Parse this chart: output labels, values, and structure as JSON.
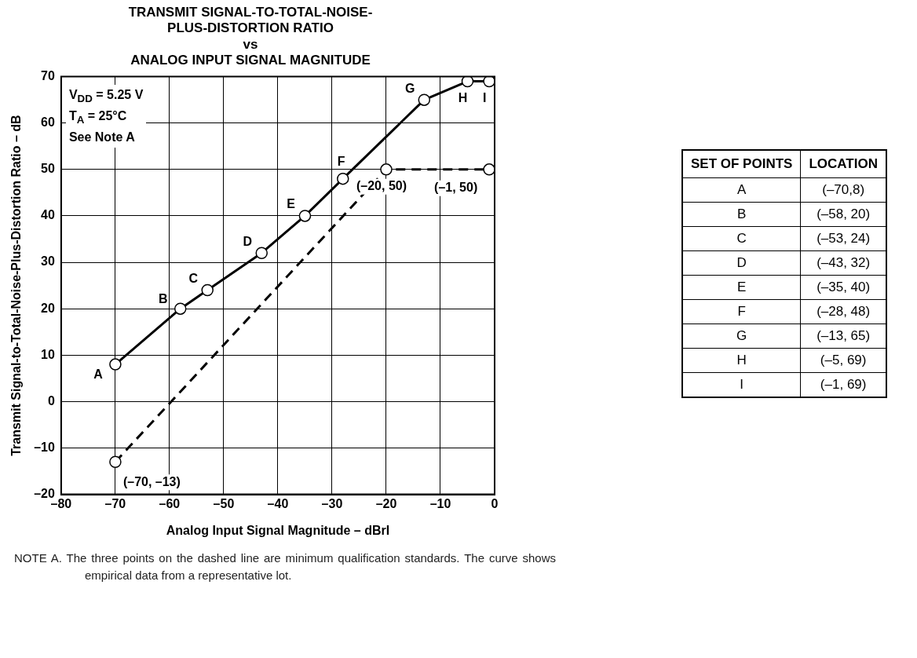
{
  "chart_data": {
    "type": "line",
    "title": "TRANSMIT SIGNAL-TO-TOTAL-NOISE-\nPLUS-DISTORTION RATIO\nvs\nANALOG INPUT SIGNAL MAGNITUDE",
    "xlabel": "Analog Input Signal Magnitude – dBrI",
    "ylabel": "Transmit Signal-to-Total-Noise-Plus-Distortion Ratio – dB",
    "xlim": [
      -80,
      0
    ],
    "xticks": [
      {
        "value": -80,
        "label": "–80"
      },
      {
        "value": -70,
        "label": "–70"
      },
      {
        "value": -60,
        "label": "–60"
      },
      {
        "value": -50,
        "label": "–50"
      },
      {
        "value": -40,
        "label": "–40"
      },
      {
        "value": -30,
        "label": "–30"
      },
      {
        "value": -20,
        "label": "–20"
      },
      {
        "value": -10,
        "label": "–10"
      },
      0
    ],
    "ylim": [
      -20,
      70
    ],
    "yticks": [
      {
        "value": -20,
        "label": "–20"
      },
      {
        "value": -10,
        "label": "–10"
      },
      0,
      10,
      20,
      30,
      40,
      50,
      60,
      70
    ],
    "grid": true,
    "marker": "circle",
    "legend": false,
    "series": [
      {
        "color": "#000000",
        "line_style": "solid",
        "x": [
          -70,
          -58,
          -53,
          -43,
          -35,
          -28,
          -13,
          -5,
          -1
        ],
        "values": [
          8,
          20,
          24,
          32,
          40,
          48,
          65,
          69,
          69
        ]
      },
      {
        "color": "#000000",
        "line_style": "dashed",
        "x": [
          -70,
          -20,
          -1
        ],
        "values": [
          -13,
          50,
          50
        ],
        "value_labels": [
          "(–70, –13)",
          "(–20, 50)",
          "(–1, 50)"
        ]
      }
    ],
    "annotations": [
      {
        "text": "A",
        "x": -70,
        "y": 8
      },
      {
        "text": "B",
        "x": -58,
        "y": 20
      },
      {
        "text": "C",
        "x": -53,
        "y": 24
      },
      {
        "text": "D",
        "x": -43,
        "y": 32
      },
      {
        "text": "E",
        "x": -35,
        "y": 40
      },
      {
        "text": "F",
        "x": -28,
        "y": 48
      },
      {
        "text": "G",
        "x": -13,
        "y": 65
      },
      {
        "text": "H",
        "x": -5,
        "y": 69
      },
      {
        "text": "I",
        "x": -1,
        "y": 69
      },
      "V$_{DD}$ = 5.25 V",
      "T$_{A}$ = 25°C",
      "See Note A",
      "SET OF POINTS",
      "LOCATION",
      "(–70,8)",
      "(–58, 20)",
      "(–53, 24)",
      "(–43, 32)",
      "(–35, 40)",
      "(–28, 48)",
      "(–13, 65)",
      "(–5, 69)",
      "(–1, 69)",
      "NOTE A.  The three points on the dashed line are minimum qualification standards. The curve shows empirical data from a representative lot."
    ]
  }
}
